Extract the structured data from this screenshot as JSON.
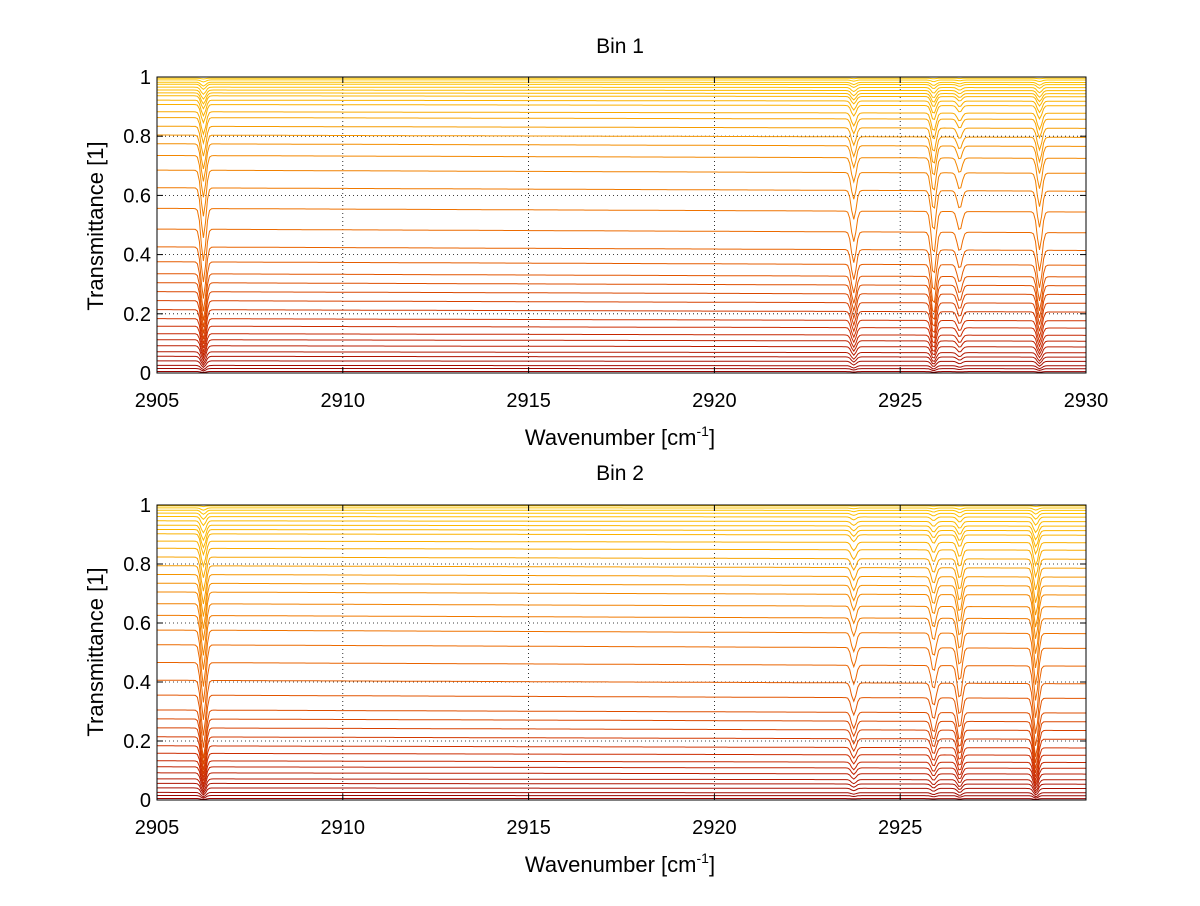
{
  "chart_data": [
    {
      "type": "line",
      "title": "Bin 1",
      "xlabel": "Wavenumber [cm",
      "xlabel_sup": "-1",
      "xlabel_end": "]",
      "ylabel": "Transmittance [1]",
      "xlim": [
        2905,
        2930
      ],
      "ylim": [
        0,
        1
      ],
      "xticks": [
        2905,
        2910,
        2915,
        2920,
        2925,
        2930
      ],
      "xtick_labels": [
        "2905",
        "2910",
        "2915",
        "2920",
        "2925",
        "2930"
      ],
      "yticks": [
        0,
        0.2,
        0.4,
        0.6,
        0.8,
        1
      ],
      "ytick_labels": [
        "0",
        "0.2",
        "0.4",
        "0.6",
        "0.8",
        "1"
      ],
      "grid": true,
      "baselines": [
        0.005,
        0.015,
        0.025,
        0.04,
        0.055,
        0.07,
        0.09,
        0.11,
        0.13,
        0.155,
        0.18,
        0.21,
        0.24,
        0.27,
        0.3,
        0.33,
        0.37,
        0.42,
        0.48,
        0.55,
        0.62,
        0.68,
        0.73,
        0.77,
        0.8,
        0.83,
        0.86,
        0.88,
        0.905,
        0.92,
        0.935,
        0.945,
        0.955,
        0.965,
        0.975,
        0.982,
        0.99,
        0.996
      ],
      "absorption_lines": [
        {
          "center": 2906.25,
          "depth": 0.55
        },
        {
          "center": 2923.75,
          "depth": 0.32
        },
        {
          "center": 2925.9,
          "depth": 0.45
        },
        {
          "center": 2926.6,
          "depth": 0.2
        },
        {
          "center": 2928.75,
          "depth": 0.4
        }
      ]
    },
    {
      "type": "line",
      "title": "Bin 2",
      "xlabel": "Wavenumber [cm",
      "xlabel_sup": "-1",
      "xlabel_end": "]",
      "ylabel": "Transmittance [1]",
      "xlim": [
        2905,
        2930
      ],
      "ylim": [
        0,
        1
      ],
      "xticks": [
        2905,
        2910,
        2915,
        2920,
        2925
      ],
      "xtick_labels": [
        "2905",
        "2910",
        "2915",
        "2920",
        "2925"
      ],
      "yticks": [
        0,
        0.2,
        0.4,
        0.6,
        0.8,
        1
      ],
      "ytick_labels": [
        "0",
        "0.2",
        "0.4",
        "0.6",
        "0.8",
        "1"
      ],
      "grid": true,
      "baselines": [
        0.005,
        0.015,
        0.025,
        0.04,
        0.055,
        0.07,
        0.09,
        0.11,
        0.13,
        0.155,
        0.18,
        0.21,
        0.24,
        0.27,
        0.3,
        0.35,
        0.4,
        0.46,
        0.52,
        0.57,
        0.62,
        0.66,
        0.7,
        0.73,
        0.76,
        0.79,
        0.82,
        0.85,
        0.875,
        0.9,
        0.915,
        0.93,
        0.945,
        0.96,
        0.972,
        0.982,
        0.99,
        0.997
      ],
      "absorption_lines": [
        {
          "center": 2906.25,
          "depth": 0.6
        },
        {
          "center": 2923.75,
          "depth": 0.2
        },
        {
          "center": 2925.9,
          "depth": 0.25
        },
        {
          "center": 2926.6,
          "depth": 0.35
        },
        {
          "center": 2928.65,
          "depth": 0.55
        }
      ]
    }
  ]
}
